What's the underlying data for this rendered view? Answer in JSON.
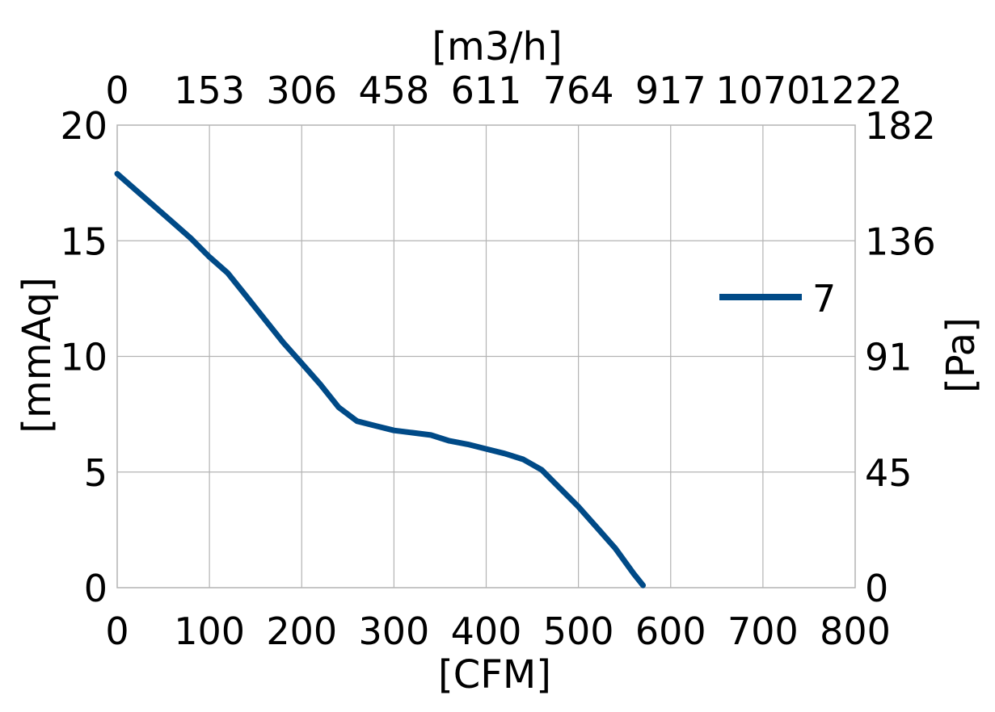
{
  "chart_data": {
    "type": "line",
    "xlabel": "[CFM]",
    "ylabel": "[mmAq]",
    "x2label": "[m3/h]",
    "y2label": "[Pa]",
    "xlim": [
      0,
      800
    ],
    "ylim": [
      0,
      20
    ],
    "x_ticks": [
      "0",
      "100",
      "200",
      "300",
      "400",
      "500",
      "600",
      "700",
      "800"
    ],
    "y_ticks": [
      "0",
      "5",
      "10",
      "15",
      "20"
    ],
    "x2_ticks": [
      "0",
      "153",
      "306",
      "458",
      "611",
      "764",
      "917",
      "1070",
      "1222"
    ],
    "y2_ticks": [
      "0",
      "45",
      "91",
      "136",
      "182"
    ],
    "grid": true,
    "legend_position": "right",
    "series": [
      {
        "name": "7",
        "color": "#004a87",
        "points": [
          [
            0,
            17.9
          ],
          [
            20,
            17.2
          ],
          [
            40,
            16.5
          ],
          [
            60,
            15.8
          ],
          [
            80,
            15.1
          ],
          [
            100,
            14.3
          ],
          [
            120,
            13.6
          ],
          [
            140,
            12.6
          ],
          [
            160,
            11.6
          ],
          [
            180,
            10.6
          ],
          [
            200,
            9.7
          ],
          [
            220,
            8.8
          ],
          [
            240,
            7.8
          ],
          [
            260,
            7.2
          ],
          [
            280,
            7.0
          ],
          [
            300,
            6.8
          ],
          [
            320,
            6.7
          ],
          [
            340,
            6.6
          ],
          [
            360,
            6.35
          ],
          [
            380,
            6.2
          ],
          [
            400,
            6.0
          ],
          [
            420,
            5.8
          ],
          [
            440,
            5.55
          ],
          [
            460,
            5.1
          ],
          [
            480,
            4.3
          ],
          [
            500,
            3.5
          ],
          [
            520,
            2.6
          ],
          [
            540,
            1.7
          ],
          [
            560,
            0.6
          ],
          [
            570,
            0.1
          ]
        ]
      }
    ]
  }
}
